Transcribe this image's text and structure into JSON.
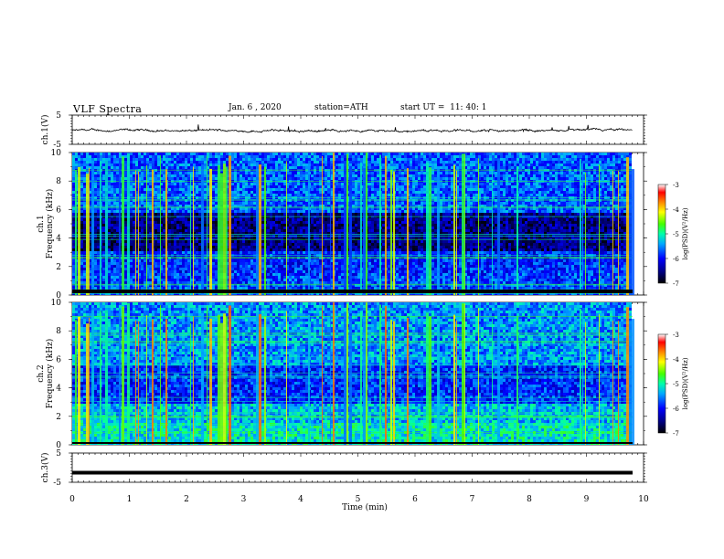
{
  "header": {
    "title": "VLF Spectra",
    "date": "Jan. 6 , 2020",
    "station": "station=ATH",
    "start": "start UT =  11: 40: 1"
  },
  "chart_data": [
    {
      "type": "line",
      "title": "",
      "ylabel": "ch.1(V)",
      "ylim": [
        -5,
        5
      ],
      "yticks": [
        "5",
        "-5"
      ],
      "x_range_min": [
        0,
        9.8
      ],
      "description_level": "waveform around -0.3 V with small spikes"
    },
    {
      "type": "heatmap",
      "ylabel": [
        "ch.1",
        "Frequency (kHz)"
      ],
      "ylim": [
        0,
        10
      ],
      "yticks": [
        "0",
        "2",
        "4",
        "6",
        "8",
        "10"
      ],
      "colorbar": {
        "label": "log(PSD)(V²/Hz)",
        "range": [
          -7,
          -3
        ],
        "ticks": [
          "-3",
          "-4",
          "-5",
          "-6",
          "-7"
        ]
      }
    },
    {
      "type": "heatmap",
      "ylabel": [
        "ch.2",
        "Frequency (kHz)"
      ],
      "ylim": [
        0,
        10
      ],
      "yticks": [
        "0",
        "2",
        "4",
        "6",
        "8",
        "10"
      ],
      "colorbar": {
        "label": "log(PSD)(V²/Hz)",
        "range": [
          -7,
          -3
        ],
        "ticks": [
          "-3",
          "-4",
          "-5",
          "-6",
          "-7"
        ]
      }
    },
    {
      "type": "line",
      "ylabel": "ch.3(V)",
      "ylim": [
        -5,
        5
      ],
      "yticks": [
        "5",
        "-5"
      ],
      "x_range_min": [
        0,
        9.8
      ],
      "description_level": "flat line near -1.7 V"
    }
  ],
  "xaxis": {
    "label": "Time (min)",
    "ticks": [
      "0",
      "1",
      "2",
      "3",
      "4",
      "5",
      "6",
      "7",
      "8",
      "9",
      "10"
    ],
    "range": [
      0,
      10
    ]
  }
}
